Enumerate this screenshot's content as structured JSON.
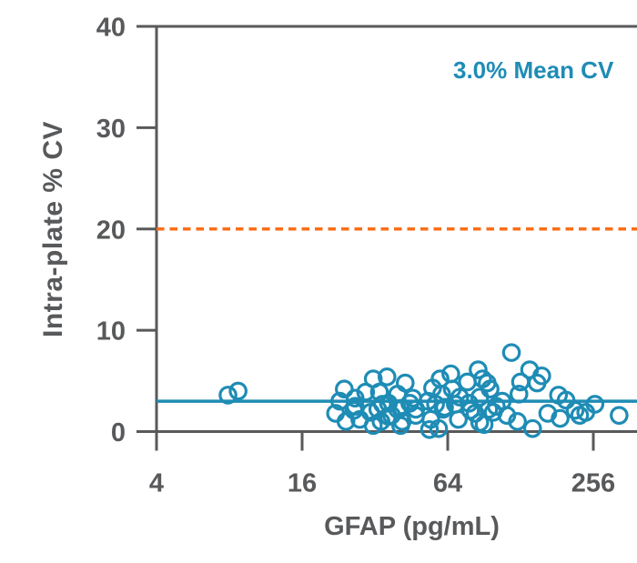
{
  "figure": {
    "background": "#ffffff"
  },
  "colors": {
    "axis": "#58595b",
    "teal": "#1e8cb5",
    "orange": "#fa6e17"
  },
  "chart_data": {
    "type": "scatter",
    "xlabel": "GFAP (pg/mL)",
    "ylabel": "Intra-plate % CV",
    "x_scale": "log4",
    "x_ticks": [
      4,
      16,
      64,
      256
    ],
    "x_range": [
      4,
      512
    ],
    "y_ticks": [
      0,
      10,
      20,
      30,
      40
    ],
    "y_range": [
      0,
      40
    ],
    "grid": false,
    "annotation": {
      "text": "3.0% Mean CV",
      "color": "#1e8cb5",
      "position": "top-right"
    },
    "reference_lines": [
      {
        "y": 20,
        "style": "dashed",
        "color": "#fa6e17",
        "meaning": "20% CV acceptance threshold"
      },
      {
        "y": 3,
        "style": "solid",
        "color": "#1e8cb5",
        "meaning": "mean intra-plate CV 3.0%"
      }
    ],
    "marker": {
      "shape": "open-circle",
      "color": "#1e8cb5",
      "radius_px": 8.7,
      "stroke_px": 3.2
    },
    "points": [
      [
        7.9,
        3.6
      ],
      [
        8.7,
        4.0
      ],
      [
        22.0,
        1.8
      ],
      [
        22.9,
        3.0
      ],
      [
        23.9,
        4.2
      ],
      [
        24.3,
        1.0
      ],
      [
        26.2,
        2.1
      ],
      [
        26.5,
        3.3
      ],
      [
        26.5,
        2.5
      ],
      [
        27.7,
        1.2
      ],
      [
        29.3,
        3.9
      ],
      [
        30.7,
        1.9
      ],
      [
        31.5,
        5.2
      ],
      [
        31.5,
        0.6
      ],
      [
        32.9,
        2.2
      ],
      [
        33.4,
        3.9
      ],
      [
        33.9,
        1.0
      ],
      [
        34.4,
        2.7
      ],
      [
        35.9,
        5.4
      ],
      [
        36.4,
        2.8
      ],
      [
        36.4,
        1.5
      ],
      [
        37.5,
        1.6
      ],
      [
        39.7,
        3.7
      ],
      [
        39.7,
        2.2
      ],
      [
        40.9,
        2.3
      ],
      [
        40.9,
        0.6
      ],
      [
        41.5,
        1.0
      ],
      [
        42.7,
        4.8
      ],
      [
        44.6,
        2.8
      ],
      [
        45.9,
        3.3
      ],
      [
        47.2,
        2.2
      ],
      [
        47.2,
        1.6
      ],
      [
        53.0,
        3.0
      ],
      [
        53.8,
        0.2
      ],
      [
        54.5,
        1.2
      ],
      [
        55.4,
        4.3
      ],
      [
        57.0,
        2.7
      ],
      [
        58.7,
        0.3
      ],
      [
        59.5,
        5.2
      ],
      [
        60.4,
        3.7
      ],
      [
        61.3,
        2.2
      ],
      [
        62.1,
        2.4
      ],
      [
        65.9,
        5.7
      ],
      [
        66.8,
        4.2
      ],
      [
        68.8,
        2.7
      ],
      [
        70.8,
        1.2
      ],
      [
        71.8,
        3.4
      ],
      [
        77.2,
        4.9
      ],
      [
        78.4,
        2.8
      ],
      [
        79.5,
        2.1
      ],
      [
        83.1,
        1.8
      ],
      [
        85.5,
        6.1
      ],
      [
        86.8,
        3.4
      ],
      [
        86.8,
        0.9
      ],
      [
        89.2,
        5.2
      ],
      [
        90.5,
        0.7
      ],
      [
        93.2,
        4.8
      ],
      [
        94.5,
        2.2
      ],
      [
        95.8,
        4.2
      ],
      [
        98.7,
        1.9
      ],
      [
        101.6,
        2.5
      ],
      [
        107.6,
        3.0
      ],
      [
        112.4,
        1.6
      ],
      [
        117.4,
        7.8
      ],
      [
        124.3,
        1.0
      ],
      [
        126.1,
        3.7
      ],
      [
        128.0,
        4.9
      ],
      [
        139.6,
        6.1
      ],
      [
        143.6,
        0.3
      ],
      [
        149.9,
        4.8
      ],
      [
        156.7,
        5.5
      ],
      [
        165.9,
        1.8
      ],
      [
        183.8,
        3.6
      ],
      [
        186.7,
        1.3
      ],
      [
        197.5,
        3.1
      ],
      [
        215.3,
        2.1
      ],
      [
        224.8,
        1.6
      ],
      [
        238.3,
        1.9
      ],
      [
        260.0,
        2.7
      ],
      [
        327.3,
        1.6
      ]
    ]
  }
}
